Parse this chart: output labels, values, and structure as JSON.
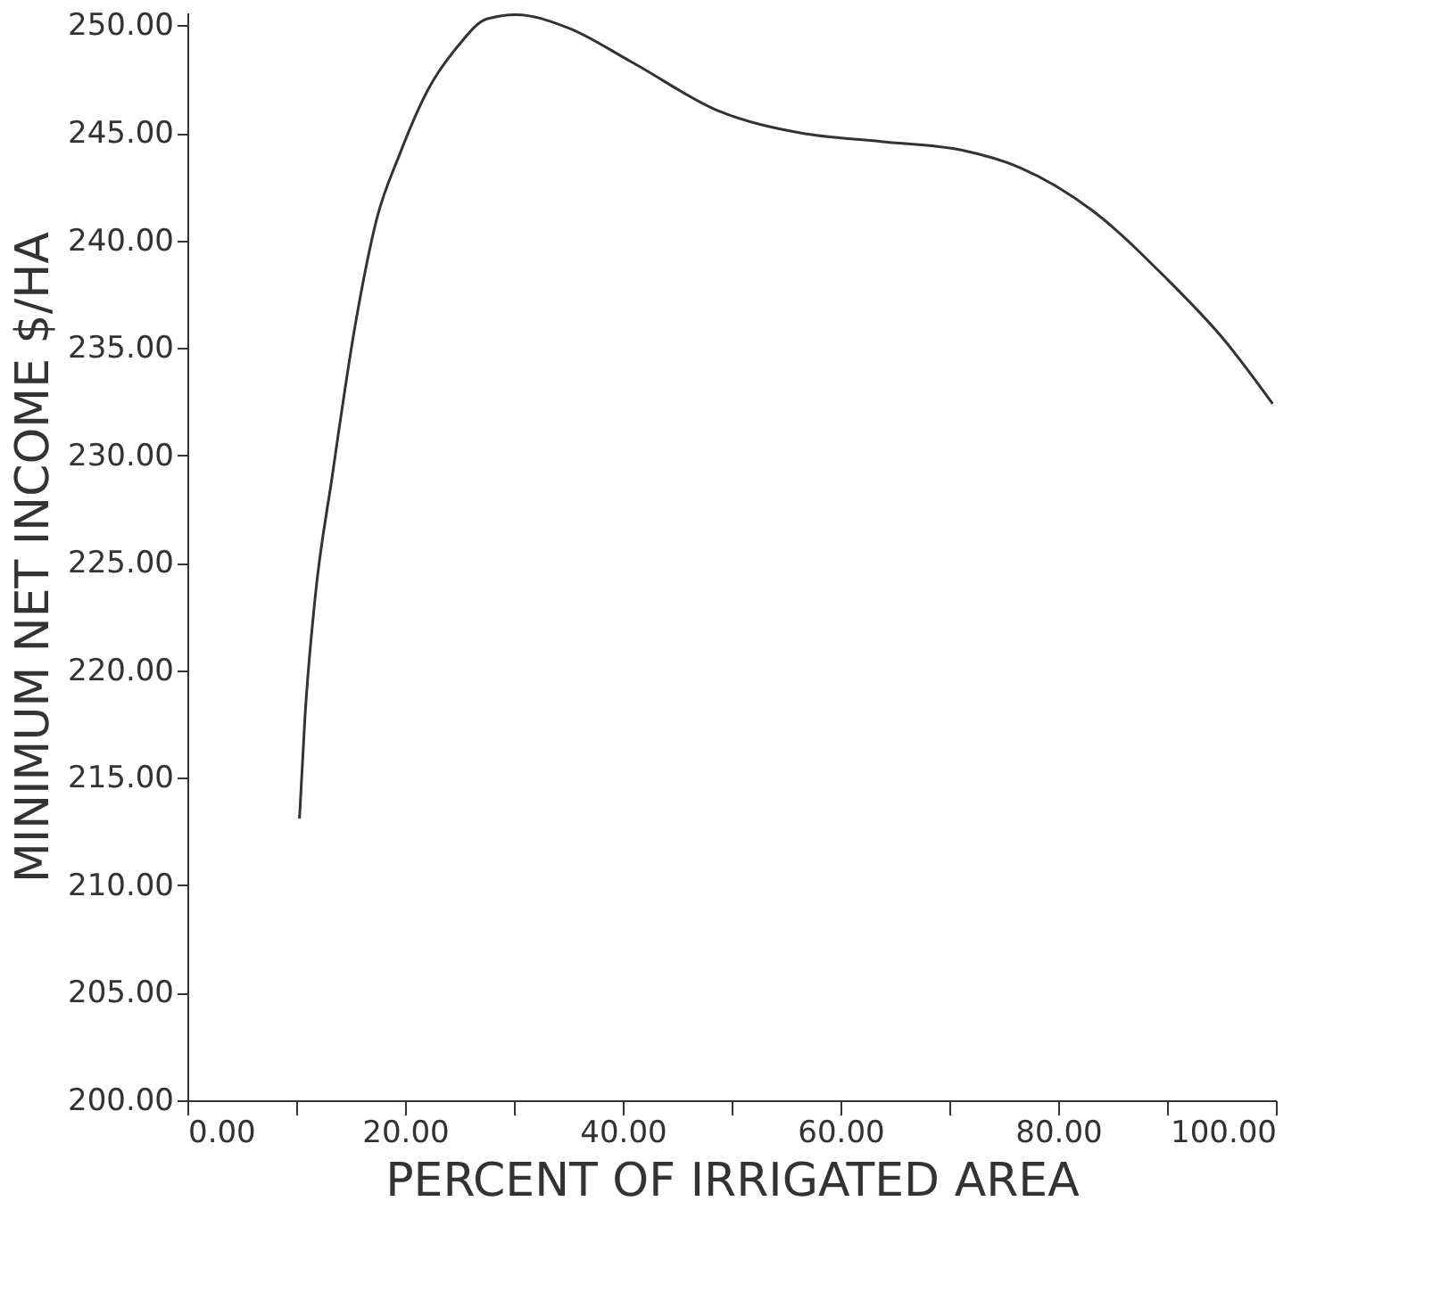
{
  "chart_data": {
    "type": "line",
    "xlabel": "PERCENT OF IRRIGATED AREA",
    "ylabel": "MINIMUM NET INCOME $/HA",
    "x": [
      10.3,
      10.8,
      11.7,
      13.3,
      15.4,
      17.4,
      19.5,
      22.1,
      24.8,
      27.5,
      30.2,
      34.9,
      40.8,
      48.9,
      56.3,
      63.7,
      71.1,
      76.4,
      83.1,
      89.8,
      95.2,
      99.7
    ],
    "series": [
      {
        "color": "#333333",
        "line_style": "solid",
        "values": [
          213.1,
          217.8,
          223.2,
          229.0,
          236.0,
          241.0,
          244.0,
          247.0,
          249.0,
          250.3,
          250.5,
          249.9,
          248.3,
          246.0,
          245.0,
          244.6,
          244.2,
          243.4,
          241.4,
          238.3,
          235.4,
          232.4
        ]
      }
    ],
    "xlim": [
      0,
      100
    ],
    "xticks": [
      {
        "value": 0,
        "label": "0.00"
      },
      {
        "value": 10,
        "label": null
      },
      {
        "value": 20,
        "label": "20.00"
      },
      {
        "value": 30,
        "label": null
      },
      {
        "value": 40,
        "label": "40.00"
      },
      {
        "value": 50,
        "label": null
      },
      {
        "value": 60,
        "label": "60.00"
      },
      {
        "value": 70,
        "label": null
      },
      {
        "value": 80,
        "label": "80.00"
      },
      {
        "value": 90,
        "label": null
      },
      {
        "value": 100,
        "label": "100.00"
      }
    ],
    "ylim": [
      200,
      250.6
    ],
    "yticks": [
      {
        "value": 200,
        "label": "200.00"
      },
      {
        "value": 205,
        "label": "205.00"
      },
      {
        "value": 210,
        "label": "210.00"
      },
      {
        "value": 215,
        "label": "215.00"
      },
      {
        "value": 220,
        "label": "220.00"
      },
      {
        "value": 225,
        "label": "225.00"
      },
      {
        "value": 230,
        "label": "230.00"
      },
      {
        "value": 235,
        "label": "235.00"
      },
      {
        "value": 240,
        "label": "240.00"
      },
      {
        "value": 245,
        "label": "245.00"
      },
      {
        "value": 250,
        "label": "250.00"
      }
    ],
    "grid": false
  }
}
